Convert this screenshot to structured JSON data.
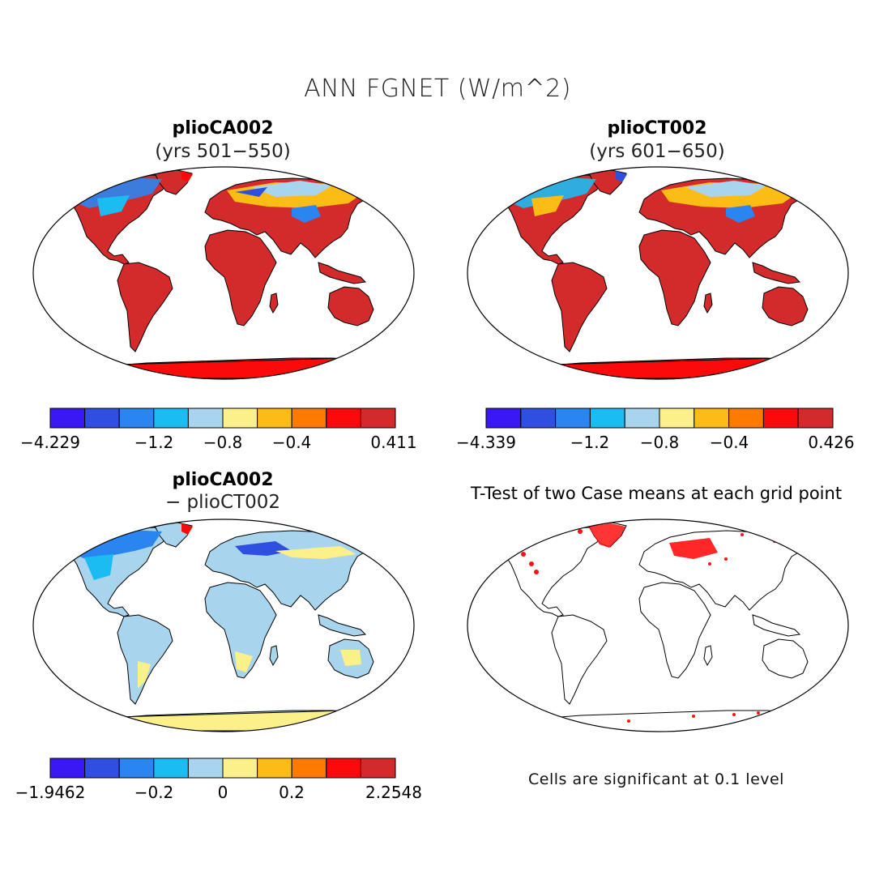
{
  "figure": {
    "title": "ANN FGNET (W/m^2)"
  },
  "panels": [
    {
      "case": "plioCA002",
      "subtitle": "(yrs 501−550)",
      "colorbar": {
        "colors": [
          "#3a17f5",
          "#2f4fe0",
          "#2b85f0",
          "#1bbcf2",
          "#a9d4ee",
          "#fbf08a",
          "#fcbc16",
          "#fc7a00",
          "#fa0a0a",
          "#d32b2b"
        ],
        "labels": [
          "−4.229",
          "−1.2",
          "−0.8",
          "−0.4",
          "0.411"
        ]
      }
    },
    {
      "case": "plioCT002",
      "subtitle": "(yrs 601−650)",
      "colorbar": {
        "colors": [
          "#3a17f5",
          "#2f4fe0",
          "#2b85f0",
          "#1bbcf2",
          "#a9d4ee",
          "#fbf08a",
          "#fcbc16",
          "#fc7a00",
          "#fa0a0a",
          "#d32b2b"
        ],
        "labels": [
          "−4.339",
          "−1.2",
          "−0.8",
          "−0.4",
          "0.426"
        ]
      }
    },
    {
      "case": "plioCA002",
      "subtitle": "− plioCT002",
      "colorbar": {
        "colors": [
          "#3a17f5",
          "#2f4fe0",
          "#2b85f0",
          "#1bbcf2",
          "#a9d4ee",
          "#fbf08a",
          "#fcbc16",
          "#fc7a00",
          "#fa0a0a",
          "#d32b2b"
        ],
        "labels": [
          "−1.9462",
          "−0.2",
          "0",
          "0.2",
          "2.2548"
        ]
      }
    },
    {
      "title": "T-Test of two Case means at each grid point",
      "note": "Cells are significant at 0.1 level",
      "significance_color": "#ff1010"
    }
  ]
}
